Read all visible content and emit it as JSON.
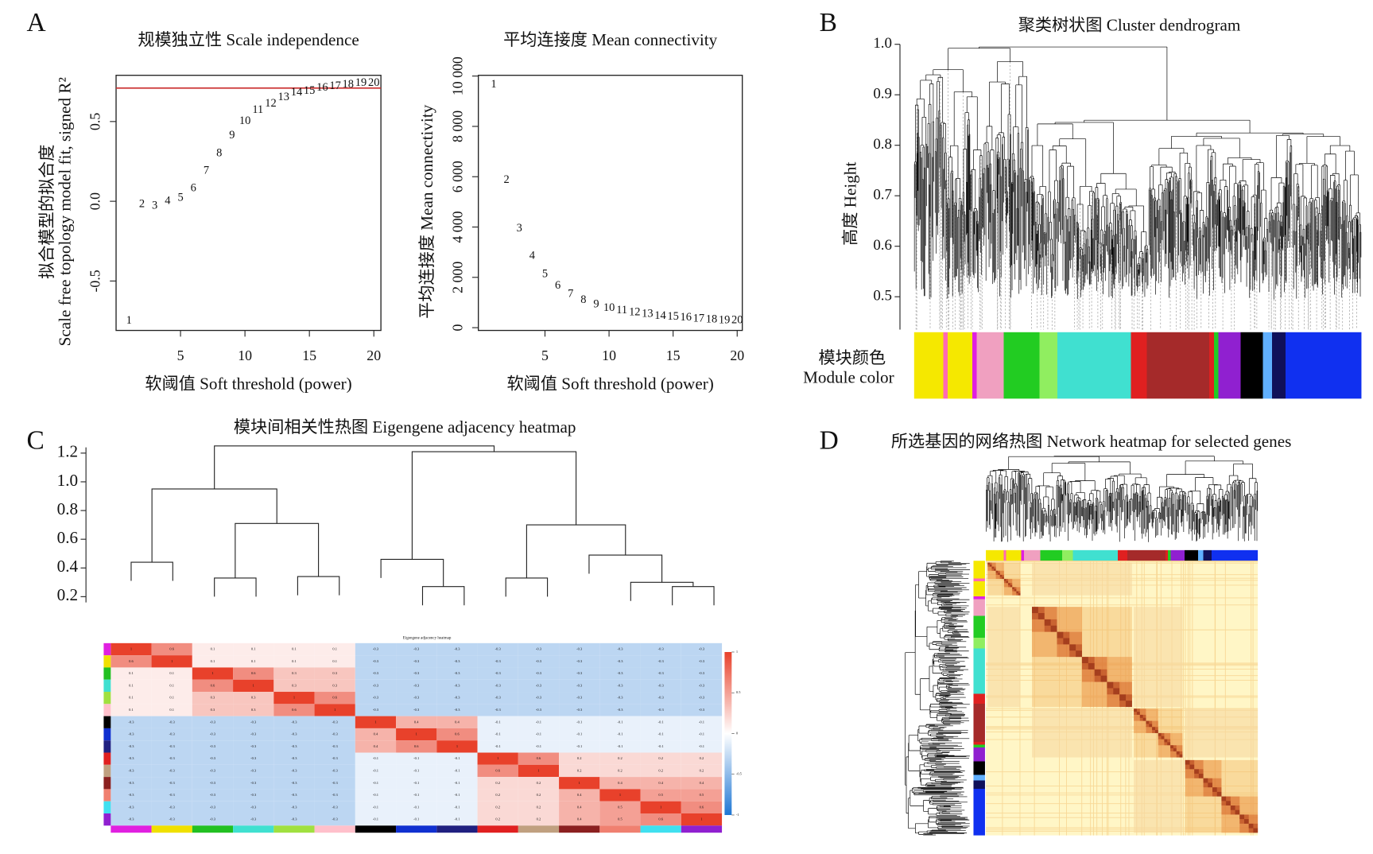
{
  "panel_labels": [
    "A",
    "B",
    "C",
    "D"
  ],
  "chart_data": [
    {
      "type": "scatter",
      "title": "规模独立性 Scale independence",
      "xlabel": "软阈值 Soft threshold (power)",
      "ylabel": [
        "拟合模型的拟合度",
        "Scale free topology model fit, signed R²"
      ],
      "x": [
        1,
        2,
        3,
        4,
        5,
        6,
        7,
        8,
        9,
        10,
        11,
        12,
        13,
        14,
        15,
        16,
        17,
        18,
        19,
        20
      ],
      "values": [
        -0.75,
        -0.02,
        -0.03,
        0,
        0.02,
        0.08,
        0.19,
        0.3,
        0.41,
        0.5,
        0.57,
        0.61,
        0.65,
        0.68,
        0.69,
        0.71,
        0.72,
        0.73,
        0.74,
        0.74
      ],
      "color": "#b8322e",
      "hline": 0.71,
      "hline_color": "#cc3333",
      "xlim": [
        0,
        20.55
      ],
      "ylim": [
        -0.81,
        0.79
      ],
      "xticks": [
        5,
        10,
        15,
        20
      ],
      "yticks": [
        -0.5,
        {
          "value": 0,
          "label": "0.0"
        },
        0.5
      ]
    },
    {
      "type": "scatter",
      "title": "平均连接度 Mean connectivity",
      "xlabel": "软阈值 Soft threshold (power)",
      "ylabel": [
        "平均连接度 Mean connectivity"
      ],
      "x": [
        1,
        2,
        3,
        4,
        5,
        6,
        7,
        8,
        9,
        10,
        11,
        12,
        13,
        14,
        15,
        16,
        17,
        18,
        19,
        20
      ],
      "values": [
        9650,
        5860,
        3930,
        2840,
        2110,
        1650,
        1330,
        1090,
        910,
        770,
        670,
        600,
        530,
        460,
        420,
        390,
        350,
        320,
        280,
        280
      ],
      "color": "#b8322e",
      "xlim": [
        -0.2,
        20.4
      ],
      "ylim": [
        -110,
        10030
      ],
      "xticks": [
        5,
        10,
        15,
        20
      ],
      "yticks": [
        0,
        {
          "value": 2000,
          "label": "2 000"
        },
        {
          "value": 4000,
          "label": "4 000"
        },
        {
          "value": 6000,
          "label": "6 000"
        },
        {
          "value": 8000,
          "label": "8 000"
        },
        {
          "value": 10000,
          "label": "10 000"
        }
      ]
    },
    {
      "type": "dendrogram",
      "title": "聚类树状图 Cluster dendrogram",
      "ylabel": "高度 Height",
      "module_label": [
        "模块颜色",
        "Module color"
      ],
      "ylim": [
        0.435,
        1.0
      ],
      "yticks": [
        0.5,
        0.6,
        0.7,
        0.8,
        0.9,
        {
          "value": 1,
          "label": "1.0"
        }
      ]
    },
    {
      "type": "eigengene",
      "title": "模块间相关性热图 Eigengene adjacency heatmap",
      "heatmap_title": "Eigengene adjacency heatmap",
      "ylim": [
        0.16,
        1.24
      ],
      "yticks": [
        0.2,
        0.4,
        0.6,
        0.8,
        {
          "value": 1,
          "label": "1.0"
        },
        1.2
      ],
      "merge": [
        [
          -1,
          -2
        ],
        [
          -3,
          -4
        ],
        [
          -5,
          -6
        ],
        [
          2,
          3
        ],
        [
          1,
          4
        ],
        [
          -8,
          -9
        ],
        [
          -7,
          6
        ],
        [
          -10,
          -11
        ],
        [
          -14,
          -15
        ],
        [
          -13,
          9
        ],
        [
          -12,
          10
        ],
        [
          8,
          11
        ],
        [
          7,
          12
        ],
        [
          5,
          13
        ]
      ],
      "heights": [
        0.44,
        0.33,
        0.34,
        0.71,
        0.95,
        0.27,
        0.46,
        0.33,
        0.27,
        0.3,
        0.49,
        0.7,
        1.21,
        1.25
      ],
      "module_colors": [
        "#e020e0",
        "#f0e000",
        "#22c022",
        "#40e0d0",
        "#a0e040",
        "#ffc0cb",
        "#000000",
        "#1030d0",
        "#202080",
        "#e02020",
        "#c0a080",
        "#8b2020",
        "#f08070",
        "#40e0f0",
        "#9020d0"
      ],
      "matrix": [
        [
          1,
          0.6,
          0.1,
          0.1,
          0.1,
          0.1,
          -0.3,
          -0.3,
          -0.3,
          -0.3,
          -0.3,
          -0.3,
          -0.3,
          -0.3,
          -0.3
        ],
        [
          0.6,
          1,
          0.1,
          0.1,
          0.1,
          0.1,
          -0.3,
          -0.3,
          -0.3,
          -0.3,
          -0.3,
          -0.3,
          -0.3,
          -0.3,
          -0.3
        ],
        [
          0.1,
          0.1,
          1,
          0.6,
          0.3,
          0.3,
          -0.3,
          -0.3,
          -0.3,
          -0.3,
          -0.3,
          -0.3,
          -0.3,
          -0.3,
          -0.3
        ],
        [
          0.1,
          0.1,
          0.6,
          1,
          0.3,
          0.3,
          -0.3,
          -0.3,
          -0.3,
          -0.3,
          -0.3,
          -0.3,
          -0.3,
          -0.3,
          -0.3
        ],
        [
          0.1,
          0.1,
          0.3,
          0.3,
          1,
          0.6,
          -0.3,
          -0.3,
          -0.3,
          -0.3,
          -0.3,
          -0.3,
          -0.3,
          -0.3,
          -0.3
        ],
        [
          0.1,
          0.1,
          0.3,
          0.3,
          0.6,
          1,
          -0.3,
          -0.3,
          -0.3,
          -0.3,
          -0.3,
          -0.3,
          -0.3,
          -0.3,
          -0.3
        ],
        [
          -0.3,
          -0.3,
          -0.3,
          -0.3,
          -0.3,
          -0.3,
          1,
          0.4,
          0.4,
          -0.1,
          -0.1,
          -0.1,
          -0.1,
          -0.1,
          -0.1
        ],
        [
          -0.3,
          -0.3,
          -0.3,
          -0.3,
          -0.3,
          -0.3,
          0.4,
          1,
          0.6,
          -0.1,
          -0.1,
          -0.1,
          -0.1,
          -0.1,
          -0.1
        ],
        [
          -0.3,
          -0.3,
          -0.3,
          -0.3,
          -0.3,
          -0.3,
          0.4,
          0.6,
          1,
          -0.1,
          -0.1,
          -0.1,
          -0.1,
          -0.1,
          -0.1
        ],
        [
          -0.3,
          -0.3,
          -0.3,
          -0.3,
          -0.3,
          -0.3,
          -0.1,
          -0.1,
          -0.1,
          1,
          0.6,
          0.2,
          0.2,
          0.2,
          0.2
        ],
        [
          -0.3,
          -0.3,
          -0.3,
          -0.3,
          -0.3,
          -0.3,
          -0.1,
          -0.1,
          -0.1,
          0.6,
          1,
          0.2,
          0.2,
          0.2,
          0.2
        ],
        [
          -0.3,
          -0.3,
          -0.3,
          -0.3,
          -0.3,
          -0.3,
          -0.1,
          -0.1,
          -0.1,
          0.2,
          0.2,
          1,
          0.4,
          0.4,
          0.4
        ],
        [
          -0.3,
          -0.3,
          -0.3,
          -0.3,
          -0.3,
          -0.3,
          -0.1,
          -0.1,
          -0.1,
          0.2,
          0.2,
          0.4,
          1,
          0.5,
          0.5
        ],
        [
          -0.3,
          -0.3,
          -0.3,
          -0.3,
          -0.3,
          -0.3,
          -0.1,
          -0.1,
          -0.1,
          0.2,
          0.2,
          0.4,
          0.5,
          1,
          0.6
        ],
        [
          -0.3,
          -0.3,
          -0.3,
          -0.3,
          -0.3,
          -0.3,
          -0.1,
          -0.1,
          -0.1,
          0.2,
          0.2,
          0.4,
          0.5,
          0.6,
          1
        ]
      ],
      "colorbar_ticks": [
        1,
        0.5,
        0,
        -0.5,
        -1
      ]
    },
    {
      "type": "network_heatmap",
      "title": "所选基因的网络热图 Network heatmap for selected genes"
    }
  ]
}
